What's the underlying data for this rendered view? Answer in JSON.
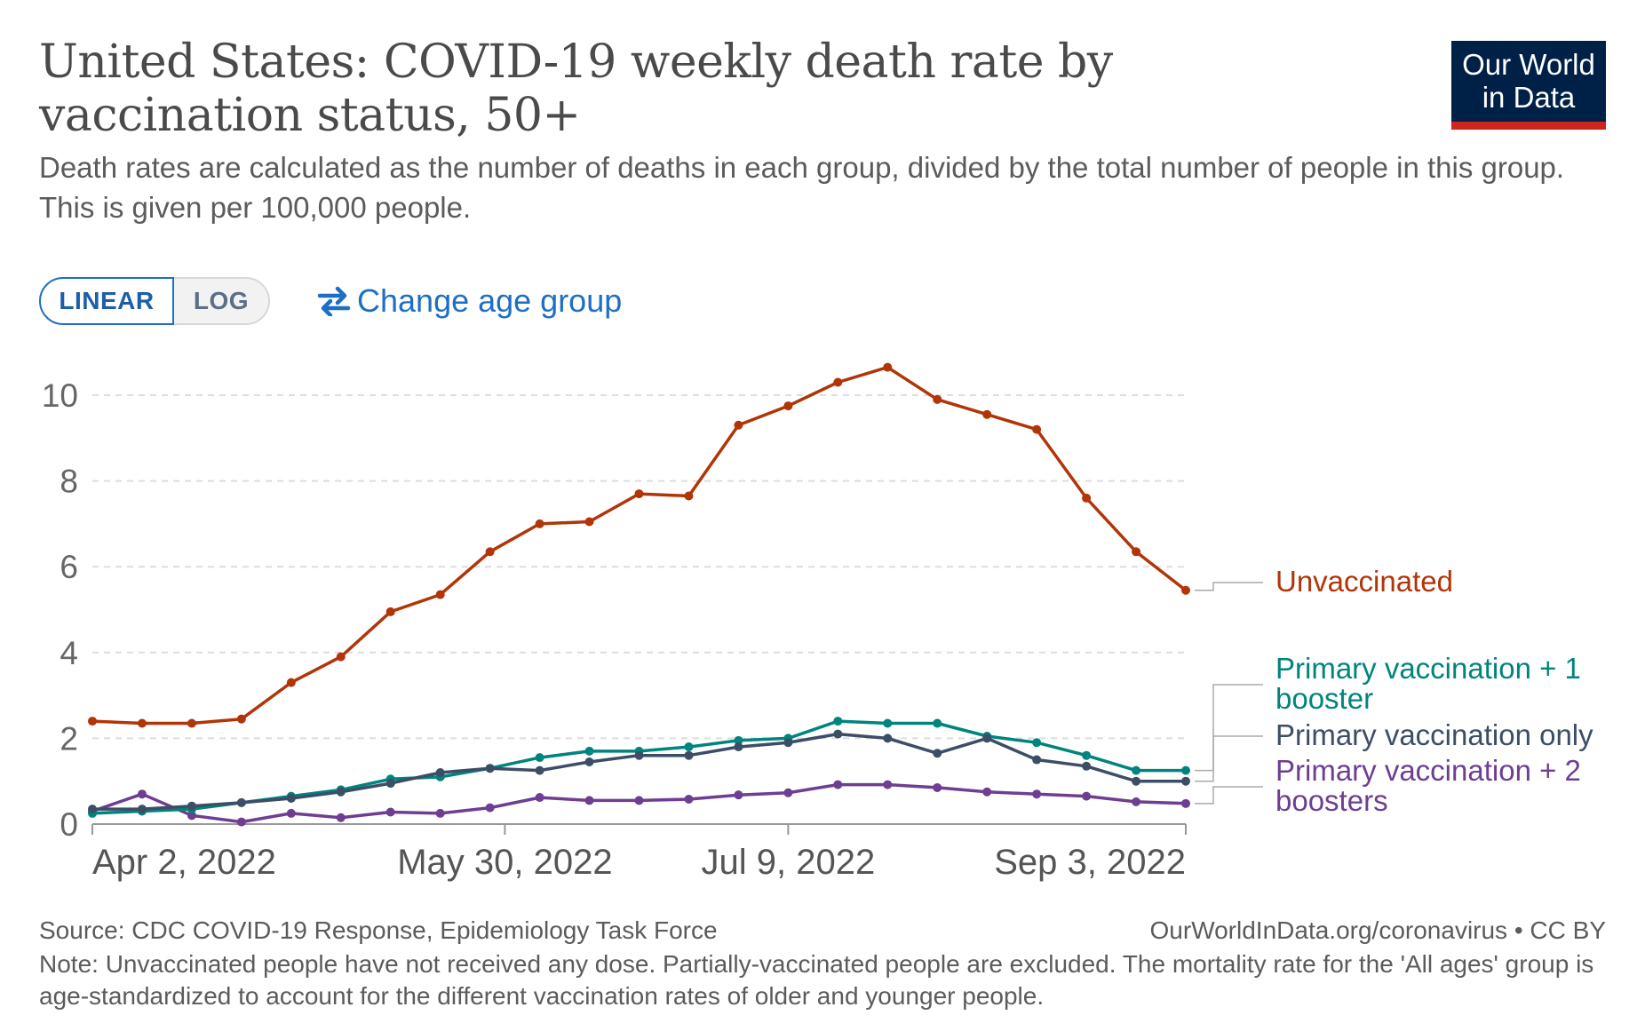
{
  "header": {
    "title": "United States: COVID-19 weekly death rate by vaccination status, 50+",
    "subtitle": "Death rates are calculated as the number of deaths in each group, divided by the total number of people in this group. This is given per 100,000 people.",
    "logo_line1": "Our World",
    "logo_line2": "in Data"
  },
  "controls": {
    "linear_label": "LINEAR",
    "log_label": "LOG",
    "change_age_label": "Change age group"
  },
  "footer": {
    "source": "Source: CDC COVID-19 Response, Epidemiology Task Force",
    "attribution": "OurWorldInData.org/coronavirus • CC BY",
    "note": "Note: Unvaccinated people have not received any dose. Partially-vaccinated people are excluded. The mortality rate for the 'All ages' group is age-standardized to account for the different vaccination rates of older and younger people."
  },
  "colors": {
    "unvaccinated": "#b13507",
    "booster1": "#00847e",
    "primary_only": "#3c4e66",
    "booster2": "#6d3e91",
    "grid": "#dddddd",
    "axis": "#999999"
  },
  "chart_data": {
    "type": "line",
    "title": "United States: COVID-19 weekly death rate by vaccination status, 50+",
    "xlabel": "",
    "ylabel": "",
    "ylim": [
      0,
      10
    ],
    "yticks": [
      0,
      2,
      4,
      6,
      8,
      10
    ],
    "x_tick_labels": [
      "Apr 2, 2022",
      "May 30, 2022",
      "Jul 9, 2022",
      "Sep 3, 2022"
    ],
    "x_tick_weeks": [
      0,
      8.3,
      14,
      22
    ],
    "weeks": 23,
    "series": [
      {
        "name": "Unvaccinated",
        "key": "unvaccinated",
        "label_lines": [
          "Unvaccinated"
        ],
        "values": [
          2.4,
          2.35,
          2.35,
          2.45,
          3.3,
          3.9,
          4.95,
          5.35,
          6.35,
          7.0,
          7.05,
          7.7,
          7.65,
          9.3,
          9.75,
          10.3,
          10.65,
          9.9,
          9.55,
          9.2,
          7.6,
          6.35,
          5.45
        ]
      },
      {
        "name": "Primary vaccination + 1 booster",
        "key": "booster1",
        "label_lines": [
          "Primary vaccination + 1",
          "booster"
        ],
        "values": [
          0.25,
          0.3,
          0.35,
          0.5,
          0.65,
          0.8,
          1.05,
          1.1,
          1.3,
          1.55,
          1.7,
          1.7,
          1.8,
          1.95,
          2.0,
          2.4,
          2.35,
          2.35,
          2.05,
          1.9,
          1.6,
          1.25,
          1.25
        ]
      },
      {
        "name": "Primary vaccination only",
        "key": "primary_only",
        "label_lines": [
          "Primary vaccination only"
        ],
        "values": [
          0.35,
          0.35,
          0.42,
          0.5,
          0.6,
          0.75,
          0.95,
          1.2,
          1.3,
          1.25,
          1.45,
          1.6,
          1.6,
          1.8,
          1.9,
          2.1,
          2.0,
          1.65,
          2.0,
          1.5,
          1.35,
          1.0,
          1.0
        ]
      },
      {
        "name": "Primary vaccination + 2 boosters",
        "key": "booster2",
        "label_lines": [
          "Primary vaccination + 2",
          "boosters"
        ],
        "values": [
          0.3,
          0.7,
          0.2,
          0.05,
          0.25,
          0.15,
          0.28,
          0.25,
          0.38,
          0.62,
          0.55,
          0.55,
          0.58,
          0.68,
          0.73,
          0.92,
          0.92,
          0.85,
          0.75,
          0.7,
          0.65,
          0.52,
          0.48
        ]
      }
    ]
  }
}
